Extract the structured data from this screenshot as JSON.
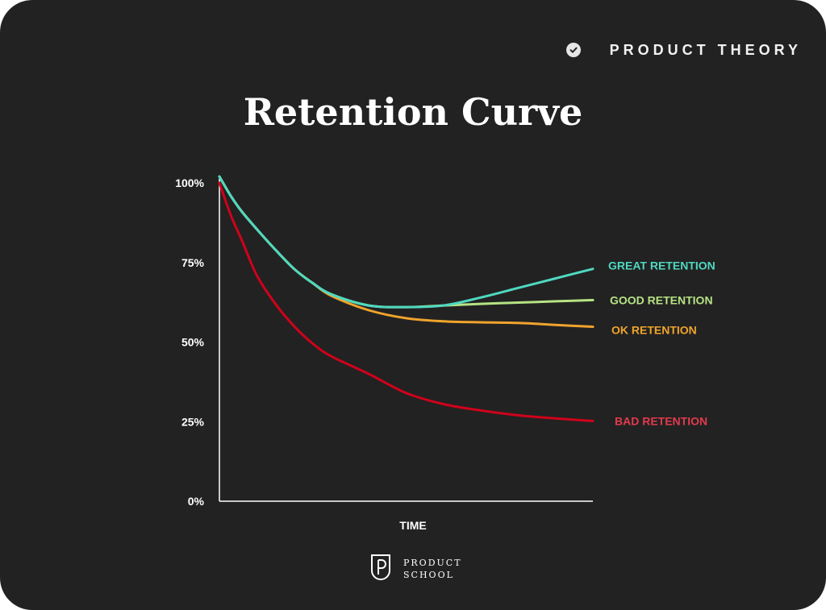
{
  "header": {
    "brand_label": "PRODUCT THEORY",
    "brand_icon": "check-circle-icon"
  },
  "footer": {
    "logo_icon": "product-school-logo-icon",
    "logo_line1": "PRODUCT",
    "logo_line2": "SCHOOL"
  },
  "colors": {
    "background": "#222222",
    "great": "#4fd8c0",
    "good": "#b6e384",
    "ok": "#f0a42c",
    "bad": "#d0021b",
    "bad_label": "#e23a4e"
  },
  "chart_data": {
    "type": "line",
    "title": "Retention Curve",
    "xlabel": "TIME",
    "ylabel": "",
    "ylim": [
      0,
      100
    ],
    "yticks": [
      {
        "value": 0,
        "label": "0%"
      },
      {
        "value": 25,
        "label": "25%"
      },
      {
        "value": 50,
        "label": "50%"
      },
      {
        "value": 75,
        "label": "75%"
      },
      {
        "value": 100,
        "label": "100%"
      }
    ],
    "x": [
      0,
      3,
      6,
      10,
      15,
      20,
      25,
      30,
      40,
      50,
      60,
      70,
      80,
      90,
      100
    ],
    "grid": false,
    "series": [
      {
        "name": "GREAT RETENTION",
        "color": "#4fd8c0",
        "values": [
          102,
          96,
          91,
          85.5,
          79,
          73,
          68.5,
          65,
          61.5,
          61,
          61.5,
          64,
          67,
          70,
          73
        ]
      },
      {
        "name": "GOOD RETENTION",
        "color": "#b6e384",
        "values": [
          102,
          96,
          91,
          85.5,
          79,
          73,
          68.5,
          65,
          61.5,
          61,
          61.5,
          62,
          62.4,
          62.8,
          63.2
        ]
      },
      {
        "name": "OK RETENTION",
        "color": "#f0a42c",
        "values": [
          102,
          96,
          91,
          85.5,
          79,
          73,
          68.5,
          64.5,
          60,
          57.5,
          56.5,
          56.2,
          56,
          55.4,
          54.8
        ]
      },
      {
        "name": "BAD RETENTION",
        "color": "#d0021b",
        "values": [
          100,
          90,
          82,
          71,
          62,
          55,
          49.5,
          45.5,
          40,
          34,
          30.5,
          28.5,
          27,
          26,
          25.2
        ]
      }
    ]
  }
}
